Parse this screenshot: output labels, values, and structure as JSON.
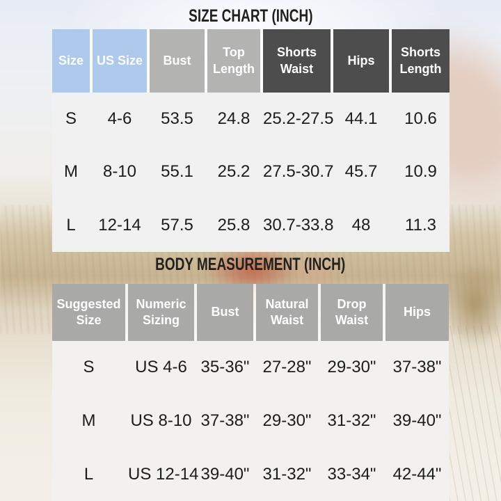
{
  "colors": {
    "header_blue": "#adc9ec",
    "header_gray": "#b3b3b2",
    "header_dark": "#4e4d4d",
    "header_gray_table2": "#a9a9a8",
    "panel_table1": "#f1f1f1",
    "panel_table2": "#f2f1ef",
    "header_text": "#ffffff",
    "body_text": "#1c1c1c",
    "title_text": "#21201d"
  },
  "chart_data": [
    {
      "type": "table",
      "title": "SIZE CHART (INCH)",
      "columns": [
        "Size",
        "US Size",
        "Bust",
        "Top Length",
        "Shorts Waist",
        "Hips",
        "Shorts Length"
      ],
      "header_styles": [
        "blue",
        "blue",
        "gray",
        "gray",
        "dark",
        "dark",
        "dark"
      ],
      "rows": [
        [
          "S",
          "4-6",
          "53.5",
          "24.8",
          "25.2-27.5",
          "44.1",
          "10.6"
        ],
        [
          "M",
          "8-10",
          "55.1",
          "25.2",
          "27.5-30.7",
          "45.7",
          "10.9"
        ],
        [
          "L",
          "12-14",
          "57.5",
          "25.8",
          "30.7-33.8",
          "48",
          "11.3"
        ]
      ]
    },
    {
      "type": "table",
      "title": "BODY MEASUREMENT (INCH)",
      "columns": [
        "Suggested Size",
        "Numeric Sizing",
        "Bust",
        "Natural Waist",
        "Drop Waist",
        "Hips"
      ],
      "header_styles": [
        "gray2",
        "gray2",
        "gray2",
        "gray2",
        "gray2",
        "gray2"
      ],
      "rows": [
        [
          "S",
          "US 4-6",
          "35-36\"",
          "27-28\"",
          "29-30\"",
          "37-38\""
        ],
        [
          "M",
          "US 8-10",
          "37-38\"",
          "29-30\"",
          "31-32\"",
          "39-40\""
        ],
        [
          "L",
          "US 12-14",
          "39-40\"",
          "31-32\"",
          "33-34\"",
          "42-44\""
        ]
      ]
    }
  ]
}
